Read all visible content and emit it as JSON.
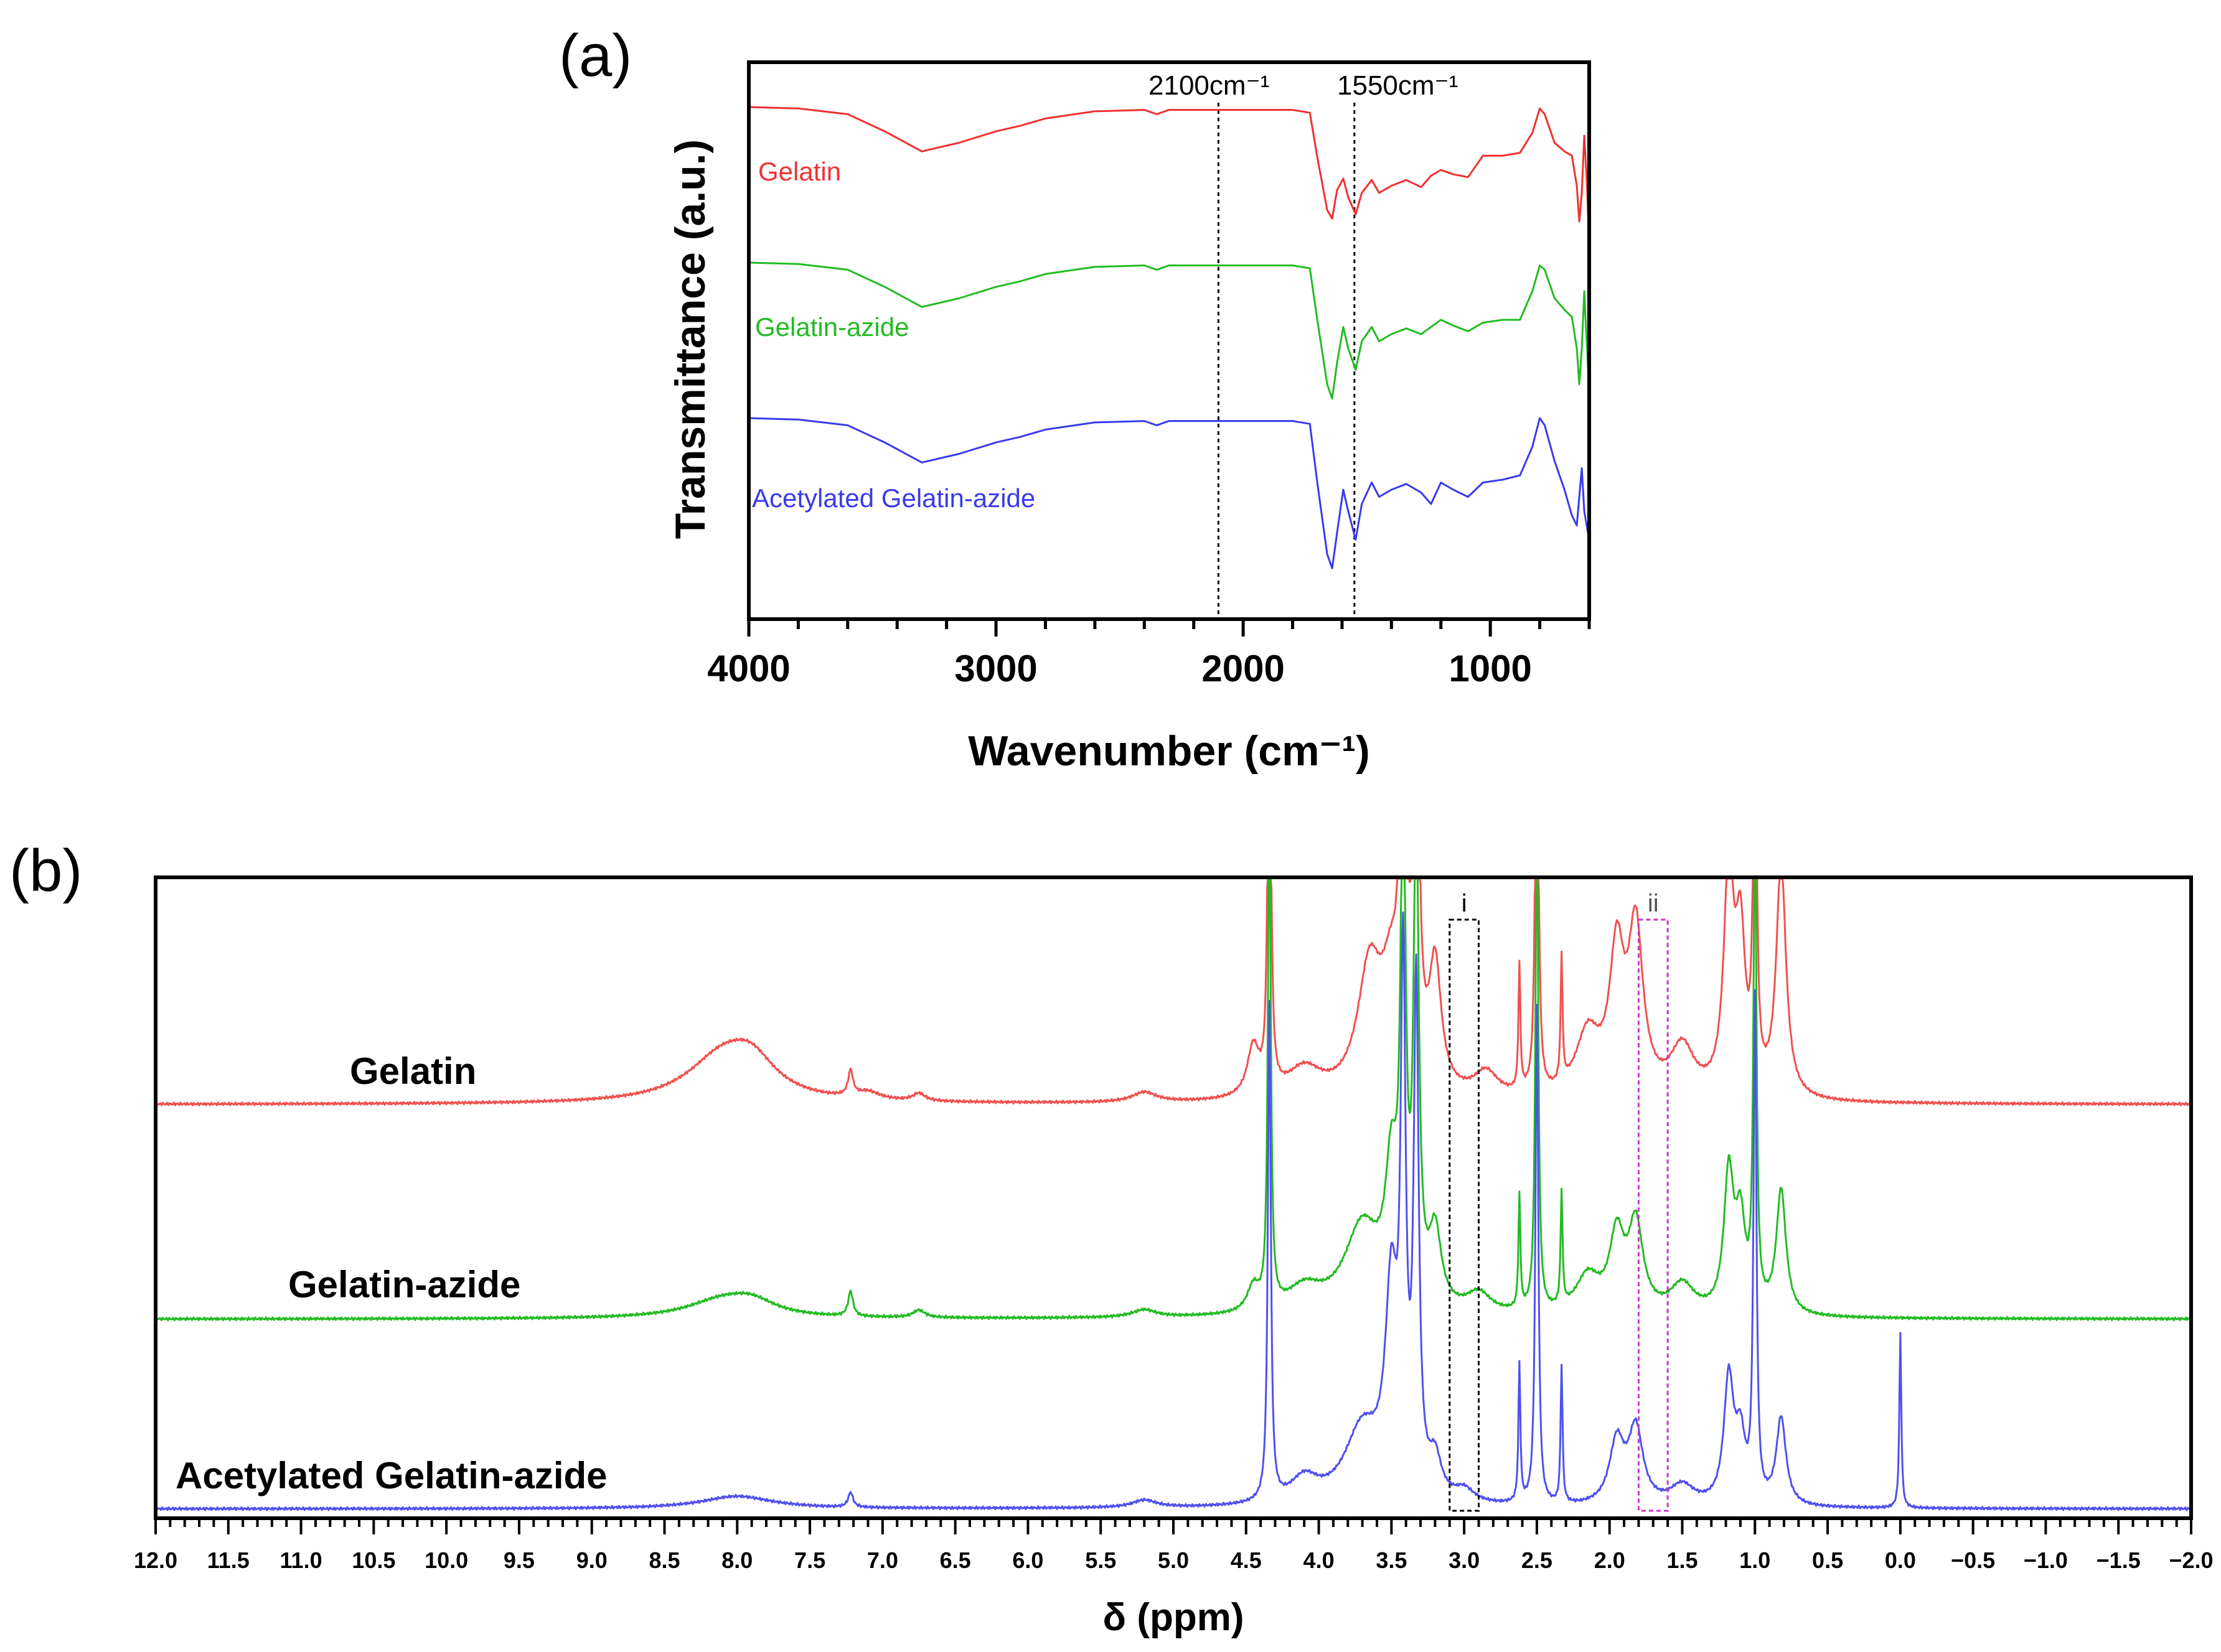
{
  "chart_data": [
    {
      "panel": "(a)",
      "type": "line",
      "xlabel": "Wavenumber (cm⁻¹)",
      "ylabel": "Transmittance (a.u.)",
      "xlim": [
        4000,
        600
      ],
      "x_reversed": true,
      "xticks": [
        4000,
        3000,
        2000,
        1000
      ],
      "yticks": [],
      "grid": false,
      "annotations": [
        {
          "text": "2100cm⁻¹",
          "x": 2100,
          "style": "dotted vertical line"
        },
        {
          "text": "1550cm⁻¹",
          "x": 1550,
          "style": "dotted vertical line"
        }
      ],
      "series": [
        {
          "name": "Gelatin",
          "color": "#f03030",
          "points": [
            [
              4000,
              0.0
            ],
            [
              3800,
              0.01
            ],
            [
              3600,
              0.05
            ],
            [
              3450,
              0.17
            ],
            [
              3300,
              0.31
            ],
            [
              3150,
              0.25
            ],
            [
              3000,
              0.17
            ],
            [
              2900,
              0.13
            ],
            [
              2800,
              0.08
            ],
            [
              2600,
              0.03
            ],
            [
              2400,
              0.02
            ],
            [
              2350,
              0.05
            ],
            [
              2300,
              0.02
            ],
            [
              2000,
              0.02
            ],
            [
              1800,
              0.02
            ],
            [
              1730,
              0.04
            ],
            [
              1700,
              0.35
            ],
            [
              1660,
              0.72
            ],
            [
              1640,
              0.78
            ],
            [
              1620,
              0.58
            ],
            [
              1595,
              0.5
            ],
            [
              1575,
              0.63
            ],
            [
              1545,
              0.75
            ],
            [
              1520,
              0.6
            ],
            [
              1480,
              0.51
            ],
            [
              1450,
              0.6
            ],
            [
              1400,
              0.55
            ],
            [
              1340,
              0.51
            ],
            [
              1280,
              0.56
            ],
            [
              1240,
              0.48
            ],
            [
              1200,
              0.44
            ],
            [
              1150,
              0.47
            ],
            [
              1090,
              0.49
            ],
            [
              1030,
              0.34
            ],
            [
              950,
              0.34
            ],
            [
              880,
              0.32
            ],
            [
              830,
              0.18
            ],
            [
              800,
              0.01
            ],
            [
              780,
              0.05
            ],
            [
              740,
              0.25
            ],
            [
              700,
              0.31
            ],
            [
              670,
              0.34
            ],
            [
              650,
              0.55
            ],
            [
              640,
              0.8
            ],
            [
              630,
              0.6
            ],
            [
              620,
              0.2
            ],
            [
              610,
              0.5
            ],
            [
              600,
              0.95
            ]
          ]
        },
        {
          "name": "Gelatin-azide",
          "color": "#22bb22",
          "points": [
            [
              4000,
              0.0
            ],
            [
              3800,
              0.01
            ],
            [
              3600,
              0.05
            ],
            [
              3450,
              0.17
            ],
            [
              3300,
              0.31
            ],
            [
              3150,
              0.25
            ],
            [
              3000,
              0.17
            ],
            [
              2900,
              0.13
            ],
            [
              2800,
              0.08
            ],
            [
              2600,
              0.03
            ],
            [
              2400,
              0.02
            ],
            [
              2350,
              0.05
            ],
            [
              2300,
              0.02
            ],
            [
              2000,
              0.02
            ],
            [
              1800,
              0.02
            ],
            [
              1730,
              0.04
            ],
            [
              1700,
              0.4
            ],
            [
              1660,
              0.85
            ],
            [
              1640,
              0.95
            ],
            [
              1620,
              0.7
            ],
            [
              1595,
              0.45
            ],
            [
              1575,
              0.6
            ],
            [
              1545,
              0.75
            ],
            [
              1520,
              0.55
            ],
            [
              1480,
              0.45
            ],
            [
              1450,
              0.55
            ],
            [
              1400,
              0.5
            ],
            [
              1340,
              0.46
            ],
            [
              1280,
              0.5
            ],
            [
              1240,
              0.45
            ],
            [
              1200,
              0.4
            ],
            [
              1150,
              0.44
            ],
            [
              1090,
              0.48
            ],
            [
              1030,
              0.42
            ],
            [
              950,
              0.4
            ],
            [
              880,
              0.4
            ],
            [
              830,
              0.2
            ],
            [
              800,
              0.02
            ],
            [
              780,
              0.05
            ],
            [
              740,
              0.25
            ],
            [
              700,
              0.33
            ],
            [
              670,
              0.38
            ],
            [
              650,
              0.6
            ],
            [
              640,
              0.85
            ],
            [
              630,
              0.6
            ],
            [
              620,
              0.2
            ],
            [
              610,
              0.55
            ],
            [
              600,
              0.9
            ]
          ]
        },
        {
          "name": "Acetylated Gelatin-azide",
          "color": "#3a3aee",
          "points": [
            [
              4000,
              0.0
            ],
            [
              3800,
              0.01
            ],
            [
              3600,
              0.05
            ],
            [
              3450,
              0.17
            ],
            [
              3300,
              0.31
            ],
            [
              3150,
              0.25
            ],
            [
              3000,
              0.17
            ],
            [
              2900,
              0.13
            ],
            [
              2800,
              0.08
            ],
            [
              2600,
              0.03
            ],
            [
              2400,
              0.02
            ],
            [
              2350,
              0.05
            ],
            [
              2300,
              0.02
            ],
            [
              2000,
              0.02
            ],
            [
              1800,
              0.02
            ],
            [
              1730,
              0.04
            ],
            [
              1700,
              0.45
            ],
            [
              1660,
              0.95
            ],
            [
              1640,
              1.05
            ],
            [
              1620,
              0.8
            ],
            [
              1595,
              0.5
            ],
            [
              1575,
              0.65
            ],
            [
              1545,
              0.85
            ],
            [
              1520,
              0.6
            ],
            [
              1480,
              0.45
            ],
            [
              1450,
              0.55
            ],
            [
              1400,
              0.5
            ],
            [
              1340,
              0.46
            ],
            [
              1280,
              0.52
            ],
            [
              1240,
              0.6
            ],
            [
              1200,
              0.45
            ],
            [
              1150,
              0.5
            ],
            [
              1090,
              0.55
            ],
            [
              1030,
              0.45
            ],
            [
              950,
              0.43
            ],
            [
              880,
              0.4
            ],
            [
              830,
              0.2
            ],
            [
              800,
              0.0
            ],
            [
              780,
              0.05
            ],
            [
              740,
              0.3
            ],
            [
              700,
              0.5
            ],
            [
              670,
              0.68
            ],
            [
              650,
              0.75
            ],
            [
              640,
              0.55
            ],
            [
              630,
              0.35
            ],
            [
              620,
              0.65
            ],
            [
              610,
              0.75
            ],
            [
              600,
              0.85
            ]
          ]
        }
      ]
    },
    {
      "panel": "(b)",
      "type": "line",
      "xlabel": "δ (ppm)",
      "xlim": [
        12.0,
        -2.0
      ],
      "x_reversed": true,
      "xticks": [
        "12.0",
        "11.5",
        "11.0",
        "10.5",
        "10.0",
        "9.5",
        "9.0",
        "8.5",
        "8.0",
        "7.5",
        "7.0",
        "6.5",
        "6.0",
        "5.5",
        "5.0",
        "4.5",
        "4.0",
        "3.5",
        "3.0",
        "2.5",
        "2.0",
        "1.5",
        "1.0",
        "0.5",
        "0.0",
        "−0.5",
        "−1.0",
        "−1.5",
        "−2.0"
      ],
      "grid": false,
      "regions": [
        {
          "label": "i",
          "x_range": [
            3.1,
            2.9
          ],
          "color": "#000000"
        },
        {
          "label": "ii",
          "x_range": [
            1.8,
            1.6
          ],
          "color": "#cc33cc"
        }
      ],
      "series": [
        {
          "name": "Gelatin",
          "color": "#f05050",
          "peaks": [
            [
              8.1,
              0.18,
              0.3
            ],
            [
              7.9,
              0.12,
              0.2
            ],
            [
              7.22,
              0.1,
              0.02
            ],
            [
              7.1,
              0.03,
              0.1
            ],
            [
              6.75,
              0.03,
              0.05
            ],
            [
              5.2,
              0.04,
              0.1
            ],
            [
              4.45,
              0.2,
              0.05
            ],
            [
              4.34,
              2.0,
              0.012
            ],
            [
              4.1,
              0.12,
              0.15
            ],
            [
              3.65,
              0.5,
              0.1
            ],
            [
              3.5,
              0.4,
              0.08
            ],
            [
              3.42,
              2.0,
              0.02
            ],
            [
              3.33,
              2.0,
              0.02
            ],
            [
              3.2,
              0.5,
              0.05
            ],
            [
              2.85,
              0.1,
              0.1
            ],
            [
              2.62,
              0.5,
              0.008
            ],
            [
              2.5,
              2.0,
              0.012
            ],
            [
              2.33,
              0.5,
              0.008
            ],
            [
              2.15,
              0.25,
              0.1
            ],
            [
              1.95,
              0.55,
              0.06
            ],
            [
              1.82,
              0.65,
              0.06
            ],
            [
              1.5,
              0.2,
              0.1
            ],
            [
              1.18,
              0.9,
              0.04
            ],
            [
              1.1,
              0.6,
              0.04
            ],
            [
              1.0,
              2.0,
              0.012
            ],
            [
              0.82,
              0.95,
              0.04
            ]
          ]
        },
        {
          "name": "Gelatin-azide",
          "color": "#22bb22",
          "peaks": [
            [
              8.1,
              0.07,
              0.3
            ],
            [
              7.9,
              0.05,
              0.2
            ],
            [
              7.22,
              0.1,
              0.02
            ],
            [
              6.75,
              0.03,
              0.05
            ],
            [
              5.2,
              0.03,
              0.1
            ],
            [
              4.45,
              0.1,
              0.05
            ],
            [
              4.34,
              2.0,
              0.012
            ],
            [
              4.1,
              0.1,
              0.15
            ],
            [
              3.7,
              0.35,
              0.15
            ],
            [
              3.5,
              0.5,
              0.05
            ],
            [
              3.42,
              2.0,
              0.02
            ],
            [
              3.33,
              2.0,
              0.02
            ],
            [
              3.2,
              0.3,
              0.05
            ],
            [
              2.9,
              0.08,
              0.1
            ],
            [
              2.62,
              0.45,
              0.008
            ],
            [
              2.5,
              2.0,
              0.012
            ],
            [
              2.33,
              0.45,
              0.008
            ],
            [
              2.15,
              0.15,
              0.1
            ],
            [
              1.95,
              0.3,
              0.06
            ],
            [
              1.82,
              0.35,
              0.06
            ],
            [
              1.5,
              0.12,
              0.1
            ],
            [
              1.18,
              0.55,
              0.04
            ],
            [
              1.1,
              0.35,
              0.04
            ],
            [
              1.0,
              2.0,
              0.012
            ],
            [
              0.82,
              0.5,
              0.04
            ]
          ]
        },
        {
          "name": "Acetylated Gelatin-azide",
          "color": "#5050ee",
          "peaks": [
            [
              8.0,
              0.05,
              0.3
            ],
            [
              7.22,
              0.06,
              0.02
            ],
            [
              5.2,
              0.03,
              0.1
            ],
            [
              4.34,
              2.0,
              0.012
            ],
            [
              4.1,
              0.1,
              0.12
            ],
            [
              3.7,
              0.3,
              0.15
            ],
            [
              3.5,
              0.8,
              0.05
            ],
            [
              3.42,
              2.0,
              0.02
            ],
            [
              3.33,
              2.0,
              0.02
            ],
            [
              3.2,
              0.15,
              0.05
            ],
            [
              3.0,
              0.05,
              0.08
            ],
            [
              2.62,
              0.55,
              0.008
            ],
            [
              2.5,
              2.0,
              0.012
            ],
            [
              2.33,
              0.55,
              0.008
            ],
            [
              1.95,
              0.25,
              0.06
            ],
            [
              1.82,
              0.3,
              0.06
            ],
            [
              1.5,
              0.08,
              0.1
            ],
            [
              1.18,
              0.5,
              0.04
            ],
            [
              1.1,
              0.25,
              0.04
            ],
            [
              1.0,
              2.0,
              0.012
            ],
            [
              0.82,
              0.35,
              0.04
            ],
            [
              0.0,
              0.7,
              0.008
            ]
          ]
        }
      ]
    }
  ],
  "labels": {
    "panel_a": "(a)",
    "panel_b": "(b)",
    "ftir_ylabel": "Transmittance (a.u.)",
    "ftir_xlabel": "Wavenumber (cm⁻¹)",
    "ftir_anno_1": "2100cm⁻¹",
    "ftir_anno_2": "1550cm⁻¹",
    "ftir_series_1": "Gelatin",
    "ftir_series_2": "Gelatin-azide",
    "ftir_series_3": "Acetylated Gelatin-azide",
    "nmr_xlabel": "δ (ppm)",
    "nmr_series_1": "Gelatin",
    "nmr_series_2": "Gelatin-azide",
    "nmr_series_3": "Acetylated Gelatin-azide",
    "nmr_region_i": "i",
    "nmr_region_ii": "ii"
  }
}
